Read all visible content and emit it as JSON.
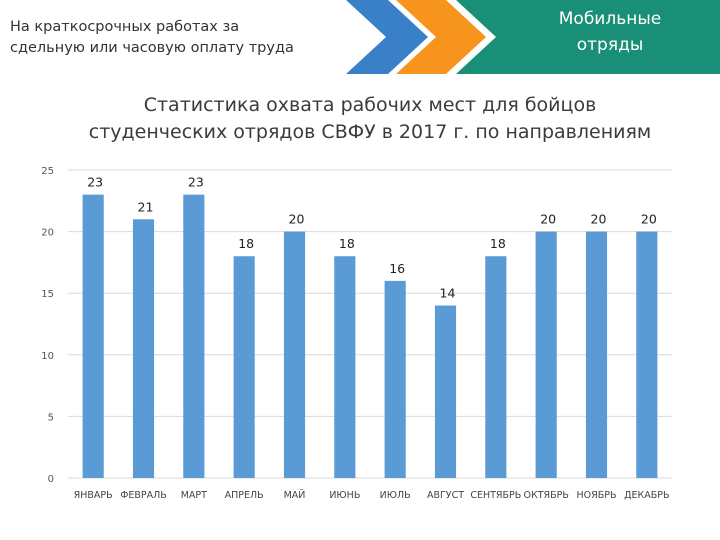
{
  "header": {
    "subtitle_line1": "На краткосрочных работах за",
    "subtitle_line2": "сдельную или часовую оплату труда",
    "badge_line1": "Мобильные",
    "badge_line2": "отряды"
  },
  "colors": {
    "bar": "#5b9bd5",
    "accent_blue": "#3a80c9",
    "accent_orange": "#f7941d",
    "accent_teal": "#1a8f78",
    "gridline": "#d9d9d9"
  },
  "chart_data": {
    "type": "bar",
    "title_line1": "Статистика охвата рабочих мест для бойцов",
    "title_line2": "студенческих отрядов СВФУ в 2017 г. по направлениям",
    "categories": [
      "ЯНВАРЬ",
      "ФЕВРАЛЬ",
      "МАРТ",
      "АПРЕЛЬ",
      "МАЙ",
      "ИЮНЬ",
      "ИЮЛЬ",
      "АВГУСТ",
      "СЕНТЯБРЬ",
      "ОКТЯБРЬ",
      "НОЯБРЬ",
      "ДЕКАБРЬ"
    ],
    "values": [
      23,
      21,
      23,
      18,
      20,
      18,
      16,
      14,
      18,
      20,
      20,
      20
    ],
    "ylim": [
      0,
      25
    ],
    "yticks": [
      0,
      5,
      10,
      15,
      20,
      25
    ],
    "grid": true,
    "data_labels": true
  }
}
